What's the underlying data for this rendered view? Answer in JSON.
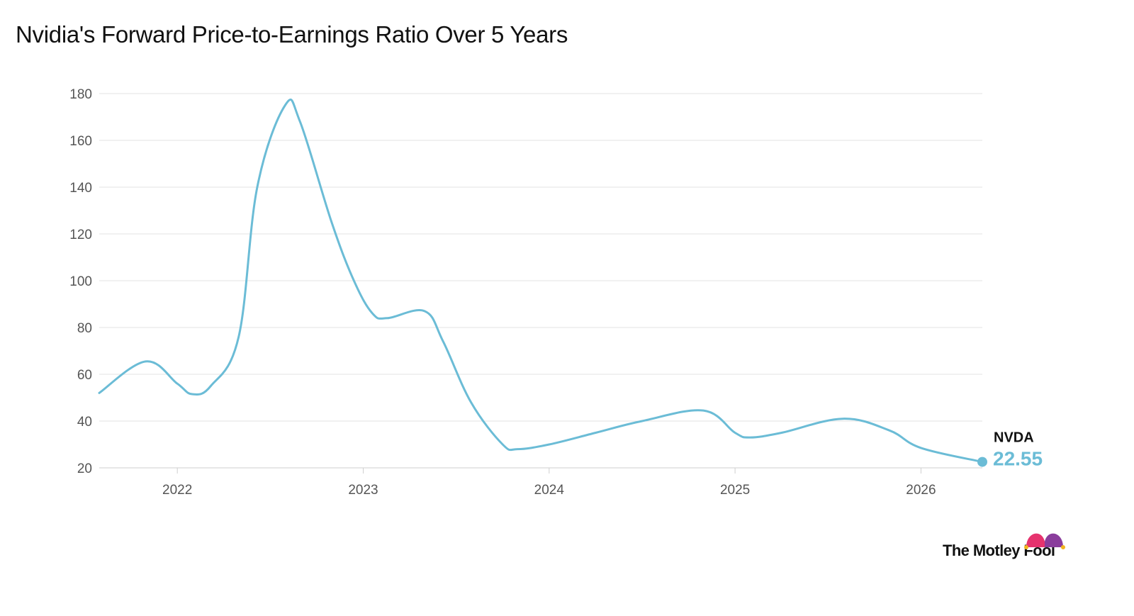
{
  "chart_data": {
    "type": "line",
    "title": "Nvidia's Forward Price-to-Earnings Ratio Over 5 Years",
    "xlabel": "",
    "ylabel": "",
    "ylim": [
      20,
      180
    ],
    "xlim": [
      2021.58,
      2026.33
    ],
    "y_ticks": [
      20,
      40,
      60,
      80,
      100,
      120,
      140,
      160,
      180
    ],
    "x_ticks": [
      2022,
      2023,
      2024,
      2025,
      2026
    ],
    "grid": true,
    "series": [
      {
        "name": "NVDA",
        "color": "#6bbcd6",
        "last_value_label": "22.55",
        "points": [
          [
            2021.58,
            52
          ],
          [
            2021.83,
            65.5
          ],
          [
            2022.0,
            56
          ],
          [
            2022.08,
            51.5
          ],
          [
            2022.18,
            55
          ],
          [
            2022.33,
            76
          ],
          [
            2022.43,
            140
          ],
          [
            2022.58,
            175
          ],
          [
            2022.66,
            168
          ],
          [
            2022.83,
            125
          ],
          [
            2022.95,
            100
          ],
          [
            2023.05,
            86
          ],
          [
            2023.13,
            84
          ],
          [
            2023.33,
            87
          ],
          [
            2023.43,
            74
          ],
          [
            2023.58,
            48
          ],
          [
            2023.75,
            30
          ],
          [
            2023.83,
            28
          ],
          [
            2024.0,
            30
          ],
          [
            2024.25,
            35
          ],
          [
            2024.5,
            40
          ],
          [
            2024.83,
            44.5
          ],
          [
            2025.0,
            35
          ],
          [
            2025.08,
            33
          ],
          [
            2025.25,
            35
          ],
          [
            2025.58,
            41
          ],
          [
            2025.83,
            36
          ],
          [
            2026.0,
            28.5
          ],
          [
            2026.33,
            22.55
          ]
        ]
      }
    ]
  },
  "branding": {
    "logo_text": "The Motley Fool",
    "logo_icon": "jester-hat-icon",
    "hat_colors": [
      "#e6336e",
      "#8a3d9c"
    ],
    "bell_color": "#f2b41e"
  }
}
